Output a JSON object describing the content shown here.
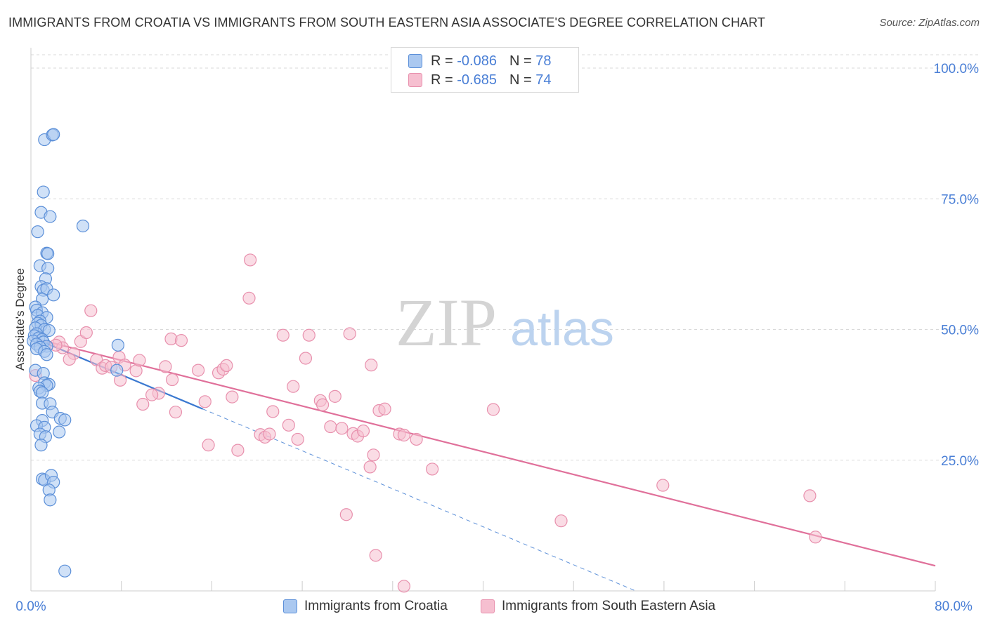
{
  "title": "IMMIGRANTS FROM CROATIA VS IMMIGRANTS FROM SOUTH EASTERN ASIA ASSOCIATE'S DEGREE CORRELATION CHART",
  "source": "Source: ZipAtlas.com",
  "watermark": {
    "zip": "ZIP",
    "atlas": "atlas"
  },
  "legend": {
    "rows": [
      {
        "r_label": "R = ",
        "r_value": "-0.086",
        "n_label": "N = ",
        "n_value": "78"
      },
      {
        "r_label": "R = ",
        "r_value": "-0.685",
        "n_label": "N = ",
        "n_value": "74"
      }
    ]
  },
  "colors": {
    "blue_fill": "#aac8f0",
    "blue_stroke": "#5b8fd8",
    "blue_line": "#3a78d0",
    "pink_fill": "#f6bfd0",
    "pink_stroke": "#e890ad",
    "pink_line": "#e0709a",
    "tick_label": "#4a7fd6",
    "grid": "#d9d9d9"
  },
  "chart_data": {
    "type": "scatter",
    "title": "IMMIGRANTS FROM CROATIA VS IMMIGRANTS FROM SOUTH EASTERN ASIA ASSOCIATE'S DEGREE CORRELATION CHART",
    "xlabel": "",
    "ylabel": "Associate's Degree",
    "xlim": [
      0,
      80
    ],
    "ylim": [
      0,
      100
    ],
    "x_tick_labels": [
      "0.0%",
      "80.0%"
    ],
    "y_ticks": [
      25,
      50,
      75,
      100
    ],
    "y_tick_labels": [
      "25.0%",
      "50.0%",
      "75.0%",
      "100.0%"
    ],
    "grid": true,
    "series": [
      {
        "name": "Immigrants from Croatia",
        "color": "#aac8f0",
        "R": -0.086,
        "N": 78,
        "trend": {
          "x": [
            0.3,
            15.2
          ],
          "y": [
            48.3,
            34.8
          ]
        },
        "trend_dashed": {
          "x": [
            15.2,
            53.5
          ],
          "y": [
            34.8,
            0
          ]
        },
        "points": [
          [
            1.2,
            86.3
          ],
          [
            1.9,
            87.2
          ],
          [
            2.0,
            87.3
          ],
          [
            1.1,
            76.3
          ],
          [
            0.9,
            72.4
          ],
          [
            1.7,
            71.6
          ],
          [
            4.6,
            69.8
          ],
          [
            0.6,
            68.7
          ],
          [
            1.4,
            64.6
          ],
          [
            1.5,
            64.5
          ],
          [
            0.8,
            62.2
          ],
          [
            1.5,
            61.7
          ],
          [
            1.3,
            59.7
          ],
          [
            0.9,
            58.2
          ],
          [
            1.1,
            57.5
          ],
          [
            1.4,
            57.8
          ],
          [
            2.0,
            56.6
          ],
          [
            1.0,
            55.8
          ],
          [
            0.4,
            54.3
          ],
          [
            0.5,
            53.7
          ],
          [
            1.0,
            53.2
          ],
          [
            0.6,
            52.7
          ],
          [
            1.4,
            52.3
          ],
          [
            0.8,
            51.6
          ],
          [
            0.6,
            51.2
          ],
          [
            0.9,
            50.8
          ],
          [
            0.4,
            50.3
          ],
          [
            1.2,
            50.0
          ],
          [
            1.6,
            49.8
          ],
          [
            0.5,
            49.2
          ],
          [
            0.3,
            48.8
          ],
          [
            0.7,
            48.4
          ],
          [
            1.0,
            48.1
          ],
          [
            0.2,
            47.8
          ],
          [
            1.1,
            47.6
          ],
          [
            0.5,
            47.2
          ],
          [
            1.4,
            46.8
          ],
          [
            0.8,
            46.6
          ],
          [
            0.5,
            46.3
          ],
          [
            1.2,
            45.8
          ],
          [
            1.4,
            45.2
          ],
          [
            7.7,
            47.0
          ],
          [
            7.6,
            42.2
          ],
          [
            0.4,
            42.2
          ],
          [
            1.1,
            41.6
          ],
          [
            1.2,
            39.8
          ],
          [
            1.6,
            39.5
          ],
          [
            1.4,
            39.3
          ],
          [
            0.7,
            38.8
          ],
          [
            0.8,
            38.2
          ],
          [
            1.0,
            37.9
          ],
          [
            1.0,
            35.9
          ],
          [
            1.7,
            35.8
          ],
          [
            1.9,
            34.2
          ],
          [
            2.6,
            33.0
          ],
          [
            3.0,
            32.7
          ],
          [
            1.0,
            32.6
          ],
          [
            0.5,
            31.6
          ],
          [
            1.2,
            31.3
          ],
          [
            2.5,
            30.4
          ],
          [
            0.8,
            30.0
          ],
          [
            1.3,
            29.5
          ],
          [
            0.9,
            27.9
          ],
          [
            1.0,
            21.4
          ],
          [
            1.2,
            21.2
          ],
          [
            1.8,
            22.1
          ],
          [
            2.0,
            20.8
          ],
          [
            1.6,
            19.3
          ],
          [
            1.7,
            17.4
          ],
          [
            3.0,
            3.8
          ]
        ]
      },
      {
        "name": "Immigrants from South Eastern Asia",
        "color": "#f6bfd0",
        "R": -0.685,
        "N": 74,
        "trend": {
          "x": [
            0.3,
            80.0
          ],
          "y": [
            48.3,
            4.8
          ]
        },
        "points": [
          [
            0.4,
            41.2
          ],
          [
            2.5,
            47.6
          ],
          [
            2.8,
            46.5
          ],
          [
            2.2,
            47.0
          ],
          [
            4.4,
            47.7
          ],
          [
            4.9,
            49.4
          ],
          [
            3.8,
            45.4
          ],
          [
            3.4,
            44.3
          ],
          [
            5.3,
            53.6
          ],
          [
            5.8,
            44.2
          ],
          [
            6.3,
            42.6
          ],
          [
            6.6,
            43.1
          ],
          [
            7.1,
            42.8
          ],
          [
            7.8,
            44.7
          ],
          [
            8.3,
            43.2
          ],
          [
            9.3,
            42.1
          ],
          [
            9.6,
            44.1
          ],
          [
            7.9,
            40.3
          ],
          [
            9.9,
            35.7
          ],
          [
            11.3,
            37.8
          ],
          [
            10.7,
            37.5
          ],
          [
            12.5,
            40.4
          ],
          [
            12.8,
            34.2
          ],
          [
            11.9,
            42.9
          ],
          [
            12.4,
            48.2
          ],
          [
            13.3,
            47.9
          ],
          [
            14.8,
            42.2
          ],
          [
            15.4,
            36.2
          ],
          [
            15.7,
            27.9
          ],
          [
            16.6,
            41.7
          ],
          [
            17.0,
            42.4
          ],
          [
            17.3,
            43.1
          ],
          [
            17.8,
            37.1
          ],
          [
            18.3,
            26.9
          ],
          [
            19.3,
            56.0
          ],
          [
            19.4,
            63.3
          ],
          [
            20.3,
            29.9
          ],
          [
            20.7,
            29.4
          ],
          [
            21.1,
            30.0
          ],
          [
            21.4,
            34.3
          ],
          [
            22.3,
            48.9
          ],
          [
            22.8,
            31.7
          ],
          [
            23.2,
            39.1
          ],
          [
            23.6,
            29.0
          ],
          [
            24.3,
            44.5
          ],
          [
            24.6,
            48.9
          ],
          [
            25.6,
            36.4
          ],
          [
            25.8,
            35.6
          ],
          [
            26.5,
            31.4
          ],
          [
            26.9,
            37.2
          ],
          [
            27.5,
            31.1
          ],
          [
            28.2,
            49.2
          ],
          [
            28.5,
            30.1
          ],
          [
            28.9,
            29.6
          ],
          [
            29.4,
            30.6
          ],
          [
            30.0,
            23.7
          ],
          [
            30.1,
            43.2
          ],
          [
            30.8,
            34.5
          ],
          [
            31.3,
            34.8
          ],
          [
            32.6,
            30.0
          ],
          [
            33.0,
            29.8
          ],
          [
            34.1,
            29.0
          ],
          [
            27.9,
            14.6
          ],
          [
            30.5,
            6.8
          ],
          [
            33.0,
            0.9
          ],
          [
            35.5,
            23.3
          ],
          [
            40.9,
            34.7
          ],
          [
            46.9,
            13.4
          ],
          [
            55.9,
            20.2
          ],
          [
            68.9,
            18.2
          ],
          [
            69.4,
            10.3
          ],
          [
            30.3,
            26.0
          ]
        ]
      }
    ]
  },
  "bottom_legend": {
    "items": [
      {
        "label": "Immigrants from Croatia"
      },
      {
        "label": "Immigrants from South Eastern Asia"
      }
    ]
  }
}
